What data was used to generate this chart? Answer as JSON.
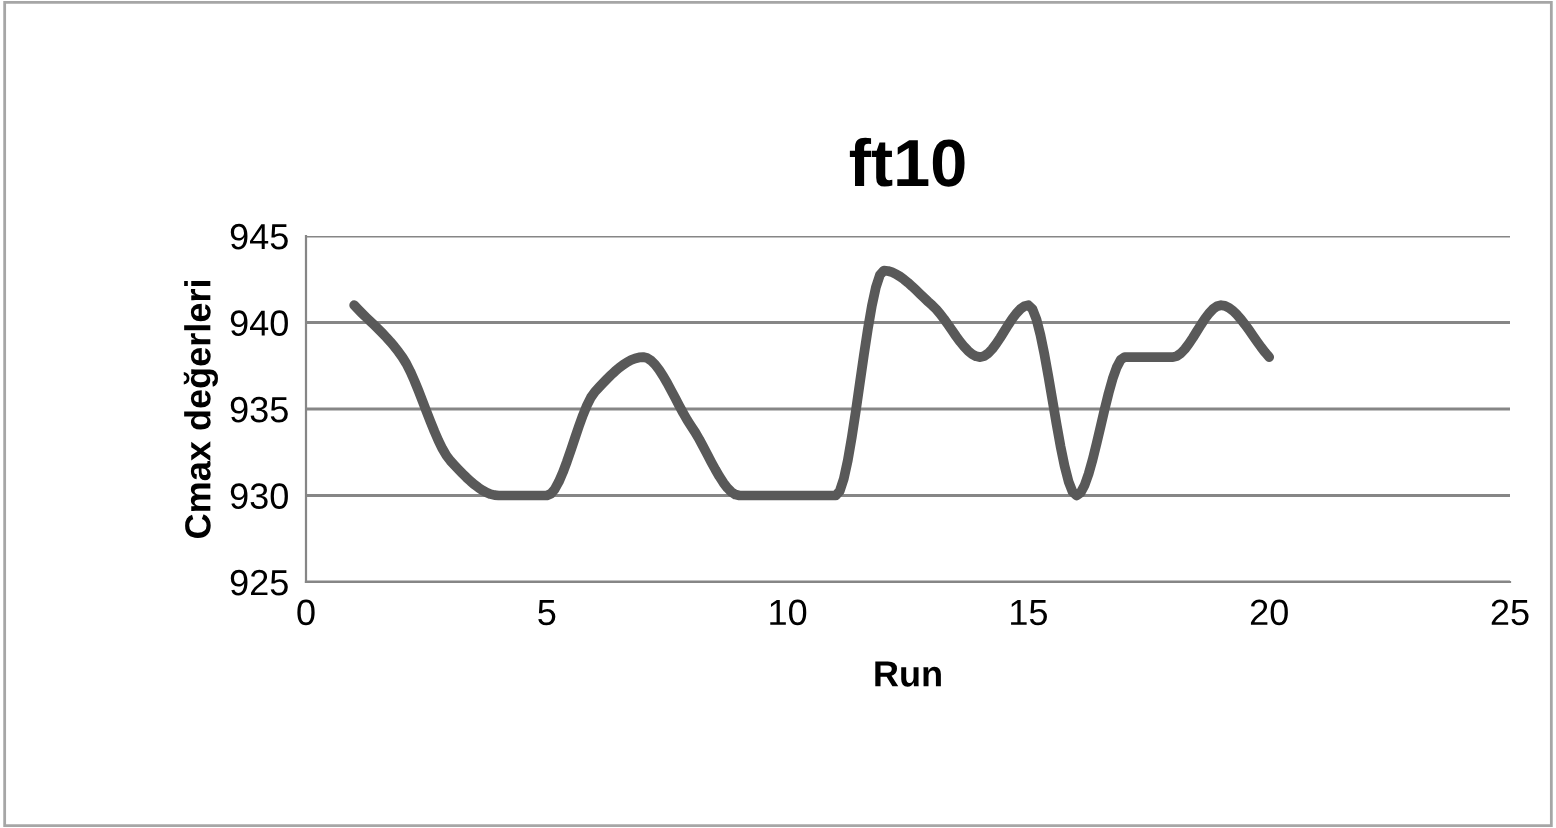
{
  "chart_data": {
    "type": "line",
    "title": "ft10",
    "xlabel": "Run",
    "ylabel": "Cmax değerleri",
    "x": [
      1,
      2,
      3,
      4,
      5,
      6,
      7,
      8,
      9,
      10,
      11,
      12,
      13,
      14,
      15,
      16,
      17,
      18,
      19,
      20
    ],
    "series": [
      {
        "color": "#595959",
        "values": [
          941,
          938,
          932,
          930,
          930,
          936,
          938,
          934,
          930,
          930,
          930,
          943,
          941,
          938,
          941,
          930,
          938,
          938,
          941,
          938
        ]
      }
    ],
    "xlim": [
      0,
      25
    ],
    "xticks": [
      0,
      5,
      10,
      15,
      20,
      25
    ],
    "ylim": [
      925,
      945
    ],
    "yticks": [
      925,
      930,
      935,
      940,
      945
    ],
    "grid": "y",
    "legend": false,
    "marker": "none",
    "line_style": "solid"
  }
}
